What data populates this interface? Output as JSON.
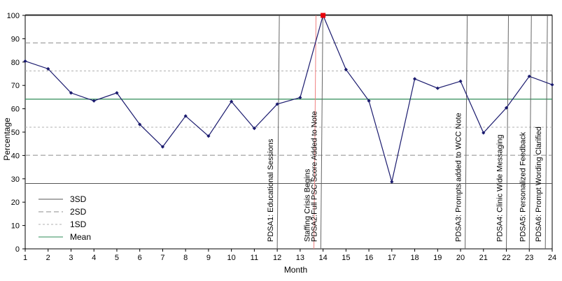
{
  "chart_data": {
    "type": "line",
    "title": "",
    "xlabel": "Month",
    "ylabel": "Percentage",
    "xlim": [
      1,
      24
    ],
    "ylim": [
      0,
      100
    ],
    "x_ticks": [
      1,
      2,
      3,
      4,
      5,
      6,
      7,
      8,
      9,
      10,
      11,
      12,
      13,
      14,
      15,
      16,
      17,
      18,
      19,
      20,
      21,
      22,
      23,
      24
    ],
    "y_ticks": [
      0,
      10,
      20,
      30,
      40,
      50,
      60,
      70,
      80,
      90,
      100
    ],
    "grid": false,
    "series": [
      {
        "x": [
          1,
          2,
          3,
          4,
          5,
          6,
          7,
          8,
          9,
          10,
          11,
          12,
          13,
          14,
          15,
          16,
          17,
          18,
          19,
          20,
          21,
          22,
          23,
          24
        ],
        "values": [
          80.4,
          77.1,
          66.8,
          63.4,
          66.8,
          53.3,
          43.7,
          56.9,
          48.3,
          63.1,
          51.6,
          62.0,
          64.8,
          100,
          76.8,
          63.4,
          28.7,
          72.8,
          68.8,
          71.8,
          49.7,
          60.4,
          73.9,
          70.3
        ],
        "color": "#1a1a6e",
        "highlight_index": 13,
        "highlight_color": "#e8000b"
      }
    ],
    "control_limits": {
      "mean": 64.1,
      "sd1_upper": 76.2,
      "sd1_lower": 52.1,
      "sd2_upper": 88.2,
      "sd2_lower": 40.1,
      "sd3_upper": 100.3,
      "sd3_lower": 28.0
    },
    "legend": {
      "position": "bottom-left",
      "entries": [
        {
          "label": "3SD",
          "style": "solid",
          "color": "#555555"
        },
        {
          "label": "2SD",
          "style": "dashed-long",
          "color": "#8c8c8c"
        },
        {
          "label": "1SD",
          "style": "dashed-short",
          "color": "#b0b0b0"
        },
        {
          "label": "Mean",
          "style": "solid",
          "color": "#2e8b57"
        }
      ]
    },
    "annotations": [
      {
        "text": "PDSA1: Educational Sessions",
        "x": 12,
        "color": "#666666"
      },
      {
        "text": "Staffing Crisis Begins",
        "x": 13.6,
        "color": "#f08080"
      },
      {
        "text": "PDSA2:Full PSC Score Added to Note",
        "x": 13.9,
        "color": "#666666"
      },
      {
        "text": "PDSA3: Prompts added to WCC Note",
        "x": 20.2,
        "color": "#666666"
      },
      {
        "text": "PDSA4: Clinic Wide Messaging",
        "x": 22.0,
        "color": "#666666"
      },
      {
        "text": "PDSA5: Personalized Feedback",
        "x": 23.0,
        "color": "#666666"
      },
      {
        "text": "PDSA6: Prompt Wording Clarified",
        "x": 23.7,
        "color": "#666666"
      }
    ]
  }
}
